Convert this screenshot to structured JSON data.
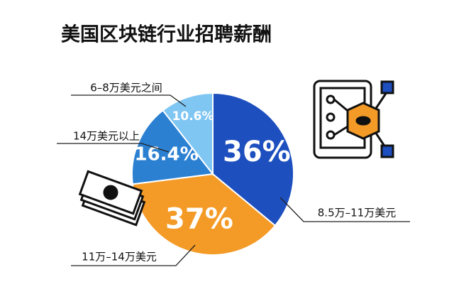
{
  "chart_data": {
    "type": "pie",
    "title": "美国区块链行业招聘薪酬",
    "categories": [
      "8.5万–11万美元",
      "11万–14万美元",
      "14万美元以上",
      "6–8万美元之间"
    ],
    "values": [
      36,
      37,
      16.4,
      10.6
    ],
    "value_labels": [
      "36%",
      "37%",
      "16.4%",
      "10.6%"
    ],
    "colors": [
      "#1d4fbf",
      "#f49a26",
      "#2b80d2",
      "#7fc6f3"
    ]
  }
}
